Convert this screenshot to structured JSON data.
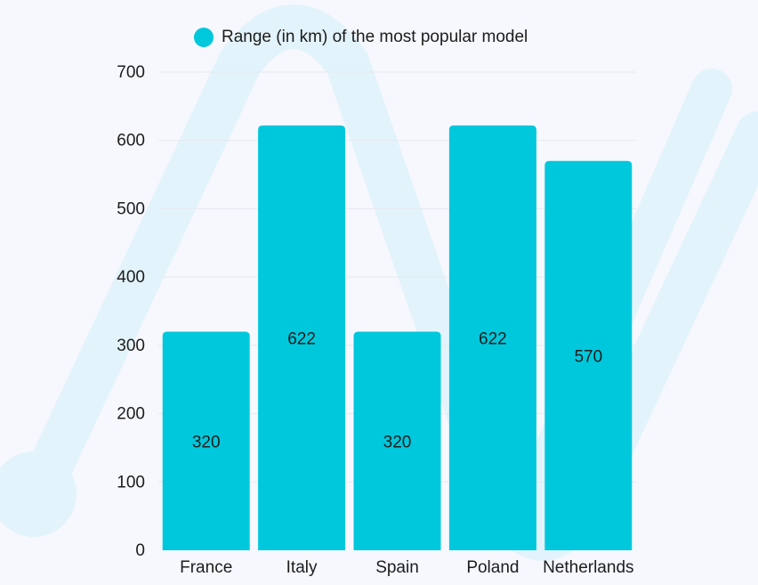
{
  "colors": {
    "bar": "#00c8dc",
    "background": "#f6f8fe",
    "decoration": "#e3f3fb",
    "grid": "#e6e8ef",
    "text": "#1c1c1c"
  },
  "legend": {
    "label": "Range (in km) of the most popular model",
    "icon": "filled-circle"
  },
  "chart_data": {
    "type": "bar",
    "title": "",
    "xlabel": "",
    "ylabel": "",
    "categories": [
      "France",
      "Italy",
      "Spain",
      "Poland",
      "Netherlands"
    ],
    "series": [
      {
        "name": "Range (in km) of the most popular model",
        "values": [
          320,
          622,
          320,
          622,
          570
        ],
        "data_labels": [
          "320",
          "622",
          "320",
          "622",
          "570"
        ]
      }
    ],
    "ylim": [
      0,
      700
    ],
    "yticks": [
      0,
      100,
      200,
      300,
      400,
      500,
      600,
      700
    ],
    "grid": true,
    "legend_position": "top-center"
  }
}
